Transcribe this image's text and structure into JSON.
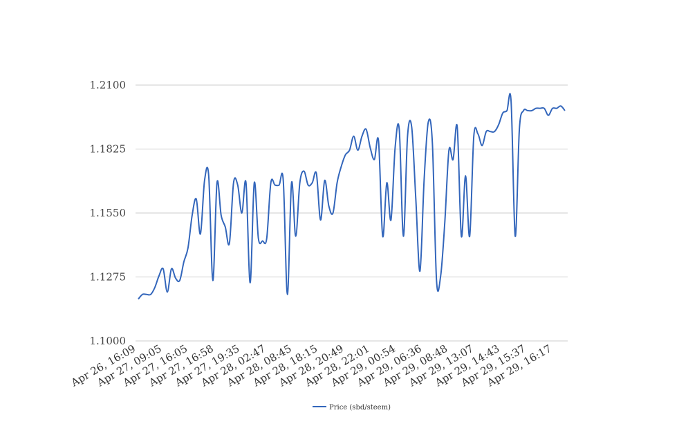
{
  "chart_data": {
    "type": "line",
    "title": "",
    "xlabel": "",
    "ylabel": "",
    "ylim": [
      1.1,
      1.21
    ],
    "y_ticks": [
      "1.1000",
      "1.1275",
      "1.1550",
      "1.1825",
      "1.2100"
    ],
    "x_tick_labels": [
      "Apr 26, 16:09",
      "Apr 27, 09:05",
      "Apr 27, 16:05",
      "Apr 27, 16:58",
      "Apr 27, 19:35",
      "Apr 28, 02:47",
      "Apr 28, 08:45",
      "Apr 28, 18:15",
      "Apr 28, 20:49",
      "Apr 28, 22:01",
      "Apr 29, 00:54",
      "Apr 29, 06:36",
      "Apr 29, 08:48",
      "Apr 29, 13:07",
      "Apr 29, 14:43",
      "Apr 29, 15:37",
      "Apr 29, 16:17"
    ],
    "grid": true,
    "legend_position": "bottom",
    "series": [
      {
        "name": "Price (sbd/steem)",
        "color": "#3366bb",
        "values": [
          1.118,
          1.12,
          1.12,
          1.12,
          1.123,
          1.128,
          1.131,
          1.121,
          1.131,
          1.127,
          1.126,
          1.134,
          1.14,
          1.154,
          1.161,
          1.146,
          1.169,
          1.171,
          1.126,
          1.168,
          1.154,
          1.149,
          1.142,
          1.168,
          1.167,
          1.155,
          1.168,
          1.125,
          1.168,
          1.144,
          1.143,
          1.144,
          1.168,
          1.167,
          1.167,
          1.169,
          1.12,
          1.168,
          1.145,
          1.168,
          1.173,
          1.167,
          1.168,
          1.172,
          1.152,
          1.169,
          1.158,
          1.155,
          1.168,
          1.175,
          1.18,
          1.182,
          1.188,
          1.182,
          1.188,
          1.191,
          1.183,
          1.178,
          1.186,
          1.145,
          1.168,
          1.152,
          1.183,
          1.191,
          1.145,
          1.188,
          1.192,
          1.161,
          1.13,
          1.169,
          1.194,
          1.185,
          1.126,
          1.128,
          1.151,
          1.182,
          1.178,
          1.192,
          1.145,
          1.171,
          1.145,
          1.188,
          1.189,
          1.184,
          1.19,
          1.19,
          1.19,
          1.193,
          1.198,
          1.199,
          1.203,
          1.145,
          1.191,
          1.199,
          1.199,
          1.199,
          1.2,
          1.2,
          1.2,
          1.197,
          1.2,
          1.2,
          1.201,
          1.199
        ]
      }
    ]
  }
}
